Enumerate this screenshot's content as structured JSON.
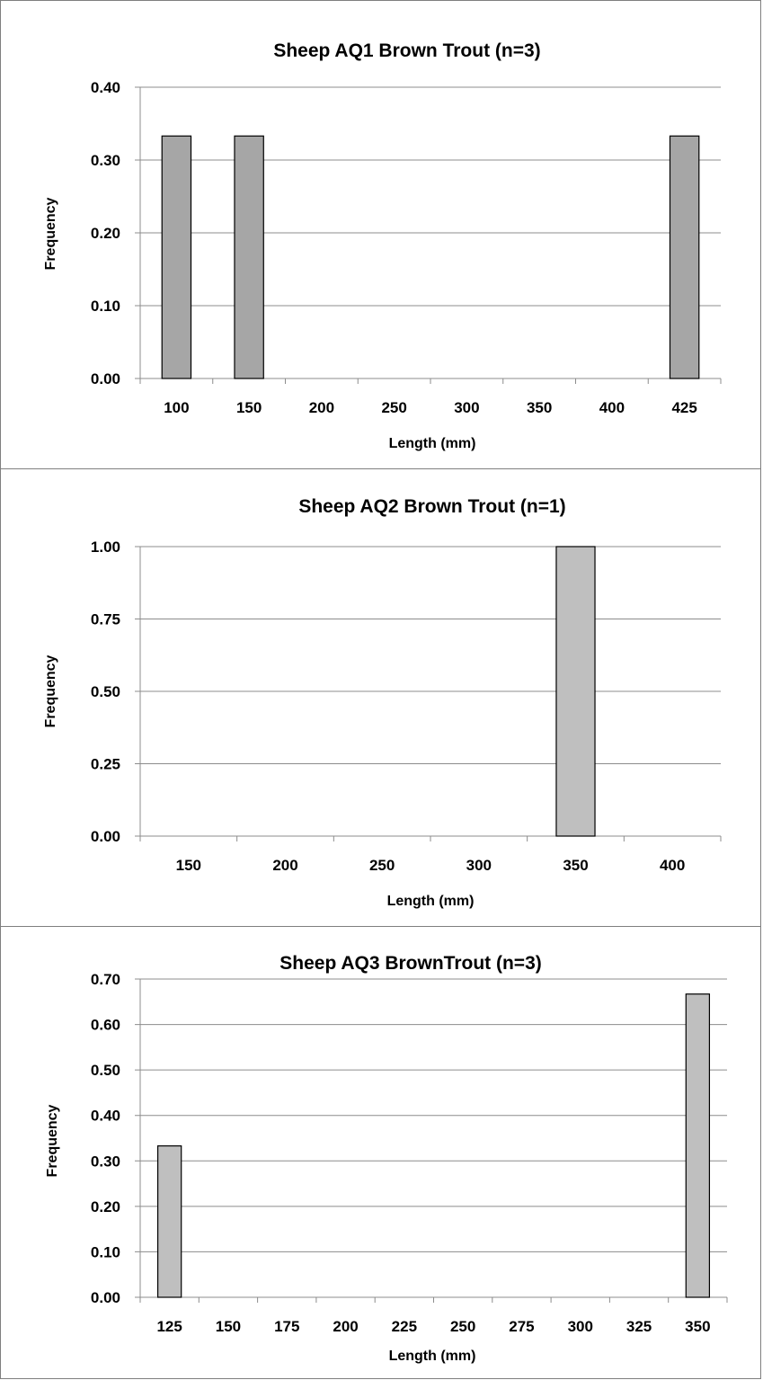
{
  "chart_data": [
    {
      "type": "bar",
      "title": "Sheep AQ1  Brown Trout (n=3)",
      "xlabel": "Length (mm)",
      "ylabel": "Frequency",
      "categories": [
        "100",
        "150",
        "200",
        "250",
        "300",
        "350",
        "400",
        "425"
      ],
      "values": [
        0.333,
        0.333,
        0,
        0,
        0,
        0,
        0,
        0.333
      ],
      "ylim": [
        0,
        0.4
      ],
      "yticks": [
        "0.00",
        "0.10",
        "0.20",
        "0.30",
        "0.40"
      ],
      "grid": true,
      "bar_color": "#a6a6a6"
    },
    {
      "type": "bar",
      "title": "Sheep AQ2  Brown Trout (n=1)",
      "xlabel": "Length (mm)",
      "ylabel": "Frequency",
      "categories": [
        "150",
        "200",
        "250",
        "300",
        "350",
        "400"
      ],
      "values": [
        0,
        0,
        0,
        0,
        1.0,
        0
      ],
      "ylim": [
        0,
        1.0
      ],
      "yticks": [
        "0.00",
        "0.25",
        "0.50",
        "0.75",
        "1.00"
      ],
      "grid": true,
      "bar_color": "#bfbfbf"
    },
    {
      "type": "bar",
      "title": "Sheep AQ3  BrownTrout (n=3)",
      "xlabel": "Length (mm)",
      "ylabel": "Frequency",
      "categories": [
        "125",
        "150",
        "175",
        "200",
        "225",
        "250",
        "275",
        "300",
        "325",
        "350"
      ],
      "values": [
        0.333,
        0,
        0,
        0,
        0,
        0,
        0,
        0,
        0,
        0.667
      ],
      "ylim": [
        0,
        0.7
      ],
      "yticks": [
        "0.00",
        "0.10",
        "0.20",
        "0.30",
        "0.40",
        "0.50",
        "0.60",
        "0.70"
      ],
      "grid": true,
      "bar_color": "#bfbfbf"
    }
  ]
}
